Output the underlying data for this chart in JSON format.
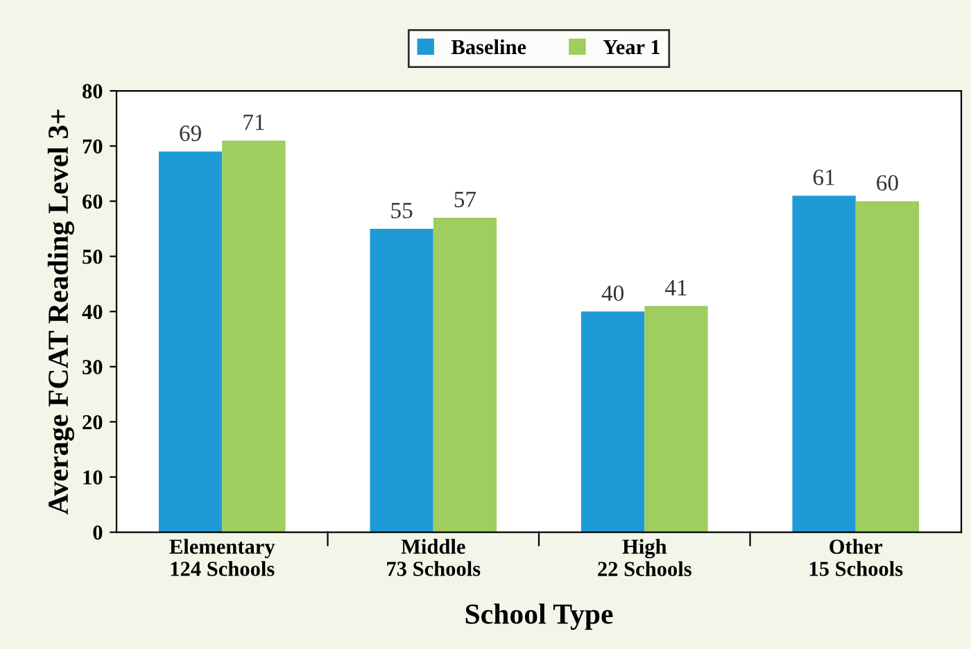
{
  "chart_data": {
    "type": "bar",
    "xlabel": "School Type",
    "ylabel": "Average FCAT Reading Level 3+",
    "categories": [
      "Elementary\n124 Schools",
      "Middle\n73 Schools",
      "High\n22 Schools",
      "Other\n15 Schools"
    ],
    "series": [
      {
        "name": "Baseline",
        "color": "#1e9bd7",
        "values": [
          69,
          55,
          40,
          61
        ]
      },
      {
        "name": "Year 1",
        "color": "#9fcd5f",
        "values": [
          71,
          57,
          41,
          60
        ]
      }
    ],
    "ylim": [
      0,
      80
    ],
    "yticks": [
      0,
      10,
      20,
      30,
      40,
      50,
      60,
      70,
      80
    ],
    "grid": false,
    "legend": "top",
    "data_labels": true
  }
}
